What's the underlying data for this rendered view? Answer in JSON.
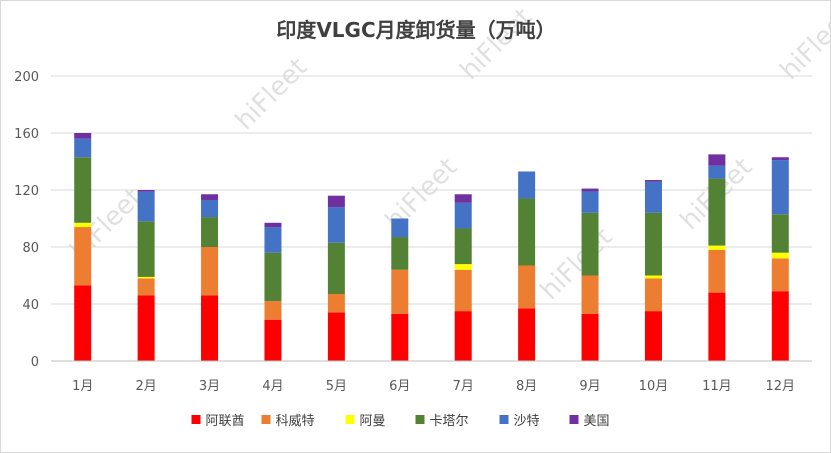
{
  "watermark": "hiFleet",
  "chart_data": {
    "type": "bar",
    "stacked": true,
    "title": "印度VLGC月度卸货量（万吨）",
    "xlabel": "",
    "ylabel": "",
    "ylim": [
      0,
      200
    ],
    "yticks": [
      0,
      40,
      80,
      120,
      160,
      200
    ],
    "grid": true,
    "legend_position": "bottom",
    "categories": [
      "1月",
      "2月",
      "3月",
      "4月",
      "5月",
      "6月",
      "7月",
      "8月",
      "9月",
      "10月",
      "11月",
      "12月"
    ],
    "series": [
      {
        "name": "阿联酋",
        "color": "#ff0000",
        "values": [
          53,
          46,
          46,
          29,
          34,
          33,
          35,
          37,
          33,
          35,
          48,
          49
        ]
      },
      {
        "name": "科威特",
        "color": "#ed7d31",
        "values": [
          41,
          12,
          34,
          13,
          13,
          31,
          29,
          30,
          27,
          23,
          30,
          23
        ]
      },
      {
        "name": "阿曼",
        "color": "#ffff00",
        "values": [
          3,
          1,
          0,
          0,
          0,
          0,
          4,
          0,
          0,
          2,
          3,
          4
        ]
      },
      {
        "name": "卡塔尔",
        "color": "#548235",
        "values": [
          46,
          39,
          21,
          34,
          36,
          23,
          25,
          47,
          44,
          44,
          47,
          27
        ]
      },
      {
        "name": "沙特",
        "color": "#4472c4",
        "values": [
          13,
          21,
          12,
          18,
          25,
          13,
          18,
          19,
          15,
          22,
          9,
          38
        ]
      },
      {
        "name": "美国",
        "color": "#7030a0",
        "values": [
          4,
          1,
          4,
          3,
          8,
          0,
          6,
          0,
          2,
          1,
          8,
          2
        ]
      }
    ]
  }
}
